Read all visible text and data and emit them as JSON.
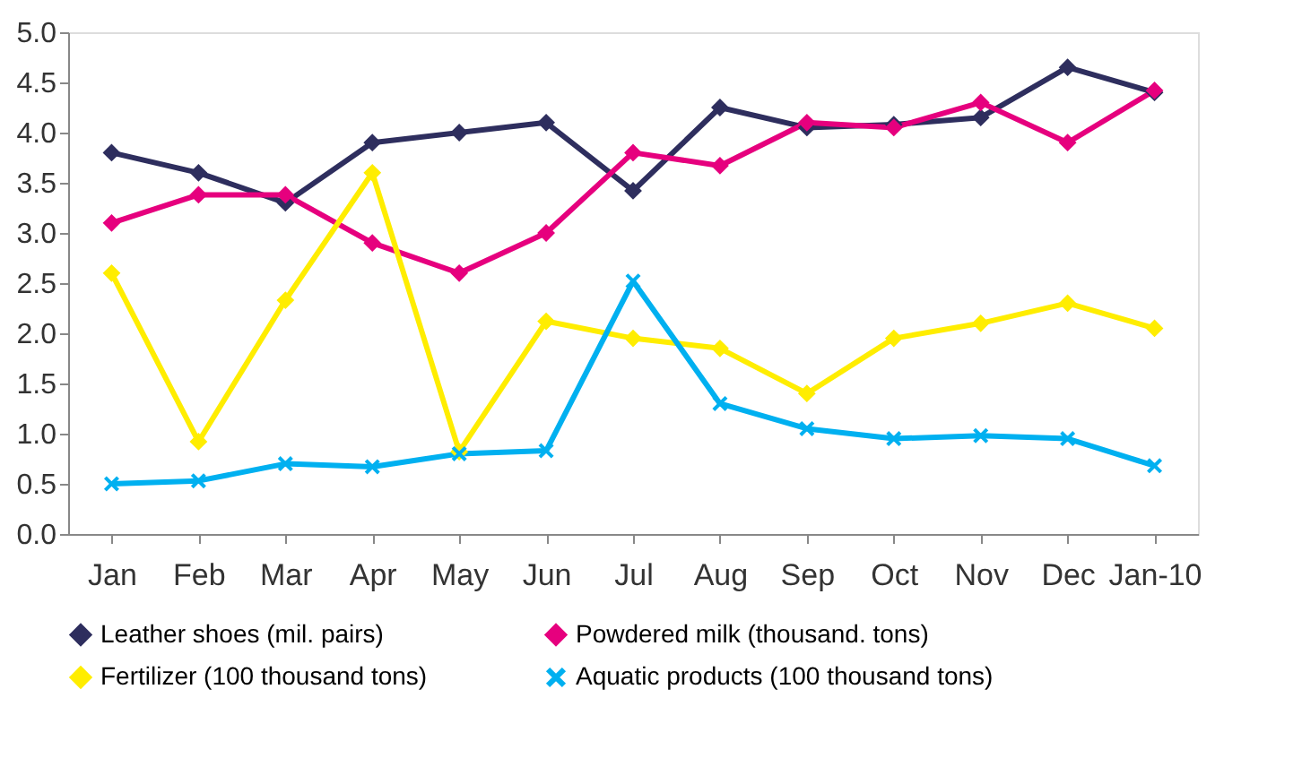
{
  "chart_data": {
    "type": "line",
    "categories": [
      "Jan",
      "Feb",
      "Mar",
      "Apr",
      "May",
      "Jun",
      "Jul",
      "Aug",
      "Sep",
      "Oct",
      "Nov",
      "Dec",
      "Jan-10"
    ],
    "series": [
      {
        "name": "Leather shoes (mil. pairs)",
        "color": "#2e2e5e",
        "marker": "diamond",
        "values": [
          3.8,
          3.6,
          3.3,
          3.9,
          4.0,
          4.1,
          3.42,
          4.25,
          4.05,
          4.08,
          4.15,
          4.65,
          4.4
        ]
      },
      {
        "name": "Powdered milk (thousand. tons)",
        "color": "#e6007e",
        "marker": "diamond",
        "values": [
          3.1,
          3.38,
          3.38,
          2.9,
          2.6,
          3.0,
          3.8,
          3.67,
          4.1,
          4.05,
          4.3,
          3.9,
          4.42
        ]
      },
      {
        "name": "Fertilizer (100 thousand tons)",
        "color": "#ffed00",
        "marker": "diamond",
        "values": [
          2.6,
          0.92,
          2.33,
          3.6,
          0.82,
          2.12,
          1.95,
          1.85,
          1.4,
          1.95,
          2.1,
          2.3,
          2.05
        ]
      },
      {
        "name": "Aquatic products (100 thousand tons)",
        "color": "#00b0f0",
        "marker": "cross",
        "values": [
          0.5,
          0.53,
          0.7,
          0.67,
          0.8,
          0.83,
          2.52,
          1.3,
          1.05,
          0.95,
          0.98,
          0.95,
          0.68
        ]
      }
    ],
    "ylim": [
      0,
      5
    ],
    "yticks": [
      {
        "value": 0,
        "label": "0.0"
      },
      {
        "value": 0.5,
        "label": "0.5"
      },
      {
        "value": 1,
        "label": "1.0"
      },
      {
        "value": 1.5,
        "label": "1.5"
      },
      {
        "value": 2,
        "label": "2.0"
      },
      {
        "value": 2.5,
        "label": "2.5"
      },
      {
        "value": 3,
        "label": "3.0"
      },
      {
        "value": 3.5,
        "label": "3.5"
      },
      {
        "value": 4,
        "label": "4.0"
      },
      {
        "value": 4.5,
        "label": "4.5"
      },
      {
        "value": 5,
        "label": "5.0"
      }
    ],
    "grid": false,
    "legend": "bottom",
    "line_style": "solid"
  }
}
